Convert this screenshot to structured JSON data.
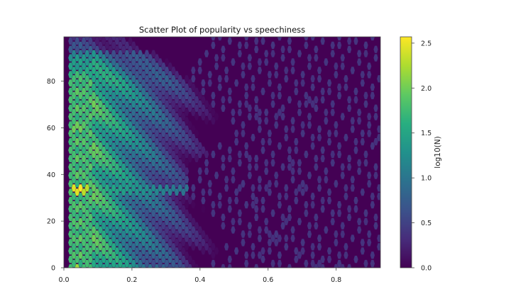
{
  "chart_data": {
    "type": "heatmap",
    "subtype": "hexbin",
    "title": "Scatter Plot of popularity vs speechiness",
    "xlabel": "",
    "ylabel": "",
    "xlim": [
      0.0,
      0.93
    ],
    "ylim": [
      0,
      99
    ],
    "x_ticks": [
      0.0,
      0.2,
      0.4,
      0.6,
      0.8
    ],
    "x_tick_labels": [
      "0.0",
      "0.2",
      "0.4",
      "0.6",
      "0.8"
    ],
    "y_ticks": [
      0,
      20,
      40,
      60,
      80
    ],
    "y_tick_labels": [
      "0",
      "20",
      "40",
      "60",
      "80"
    ],
    "grid": false,
    "colormap": "viridis",
    "colorbar": {
      "label": "log10(N)",
      "range": [
        0.0,
        2.57
      ],
      "ticks": [
        0.0,
        0.5,
        1.0,
        1.5,
        2.0,
        2.5
      ],
      "tick_labels": [
        "0.0",
        "0.5",
        "1.0",
        "1.5",
        "2.0",
        "2.5"
      ]
    },
    "background_value": 0.0,
    "description": "Hexbin density of popularity (y) against speechiness (x). Densest at speechiness 0.03-0.08 across all popularity levels, with a hot spot near popularity 33-34 and low speechiness, and a bright band at popularity 0. Density fades with increasing speechiness; sparse points extend to about 0.93.",
    "hot_spots": [
      {
        "x": 0.05,
        "y": 34,
        "log10N": 2.57
      },
      {
        "x": 0.04,
        "y": 34,
        "log10N": 2.45
      },
      {
        "x": 0.06,
        "y": 34,
        "log10N": 2.3
      },
      {
        "x": 0.04,
        "y": 0,
        "log10N": 2.2
      },
      {
        "x": 0.04,
        "y": 60,
        "log10N": 2.0
      }
    ],
    "outliers": [
      {
        "x": 0.54,
        "y": 69
      },
      {
        "x": 0.57,
        "y": 66
      },
      {
        "x": 0.61,
        "y": 70
      },
      {
        "x": 0.63,
        "y": 66
      },
      {
        "x": 0.73,
        "y": 72
      },
      {
        "x": 0.74,
        "y": 71
      },
      {
        "x": 0.92,
        "y": 55
      },
      {
        "x": 0.9,
        "y": 58
      },
      {
        "x": 0.67,
        "y": 44
      },
      {
        "x": 0.7,
        "y": 34
      },
      {
        "x": 0.6,
        "y": 34
      },
      {
        "x": 0.65,
        "y": 21
      },
      {
        "x": 0.61,
        "y": 14
      },
      {
        "x": 0.63,
        "y": 14
      },
      {
        "x": 0.58,
        "y": 6
      },
      {
        "x": 0.69,
        "y": 4
      },
      {
        "x": 0.81,
        "y": 0
      },
      {
        "x": 0.74,
        "y": 2
      },
      {
        "x": 0.55,
        "y": 18
      },
      {
        "x": 0.56,
        "y": 28
      },
      {
        "x": 0.52,
        "y": 34
      },
      {
        "x": 0.5,
        "y": 41
      },
      {
        "x": 0.54,
        "y": 47
      }
    ]
  }
}
